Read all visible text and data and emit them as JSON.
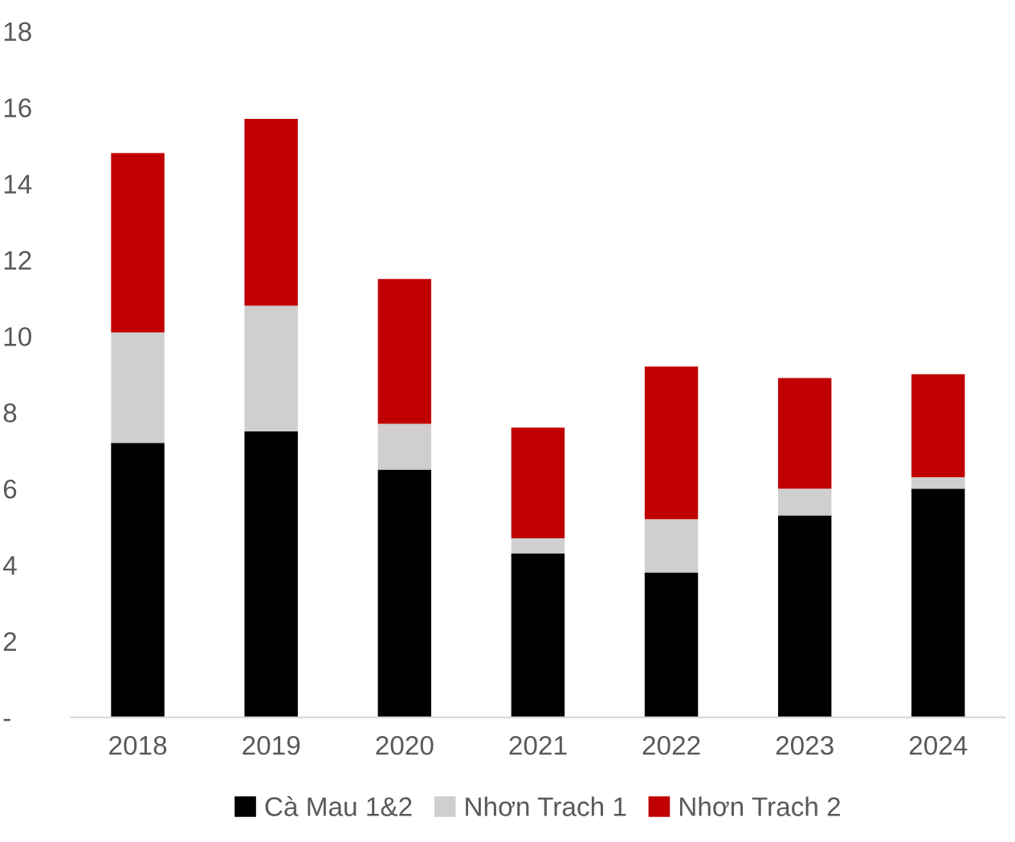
{
  "chart_data": {
    "type": "bar",
    "stacked": true,
    "categories": [
      "2018",
      "2019",
      "2020",
      "2021",
      "2022",
      "2023",
      "2024"
    ],
    "series": [
      {
        "name": "Cà Mau 1&2",
        "color": "#000000",
        "values": [
          7.2,
          7.5,
          6.5,
          4.3,
          3.8,
          5.3,
          6.0
        ]
      },
      {
        "name": "Nhơn Trach 1",
        "color": "#d0cece",
        "values": [
          2.9,
          3.3,
          1.2,
          0.4,
          1.4,
          0.7,
          0.3
        ]
      },
      {
        "name": "Nhơn Trach 2",
        "color": "#c00000",
        "values": [
          4.7,
          4.9,
          3.8,
          2.9,
          4.0,
          2.9,
          2.7
        ]
      }
    ],
    "ylim": [
      0,
      18
    ],
    "yticks": [
      {
        "value": 0,
        "label": "-"
      },
      2,
      4,
      6,
      8,
      10,
      12,
      14,
      16,
      18
    ],
    "grid": false,
    "legend": "bottom"
  }
}
